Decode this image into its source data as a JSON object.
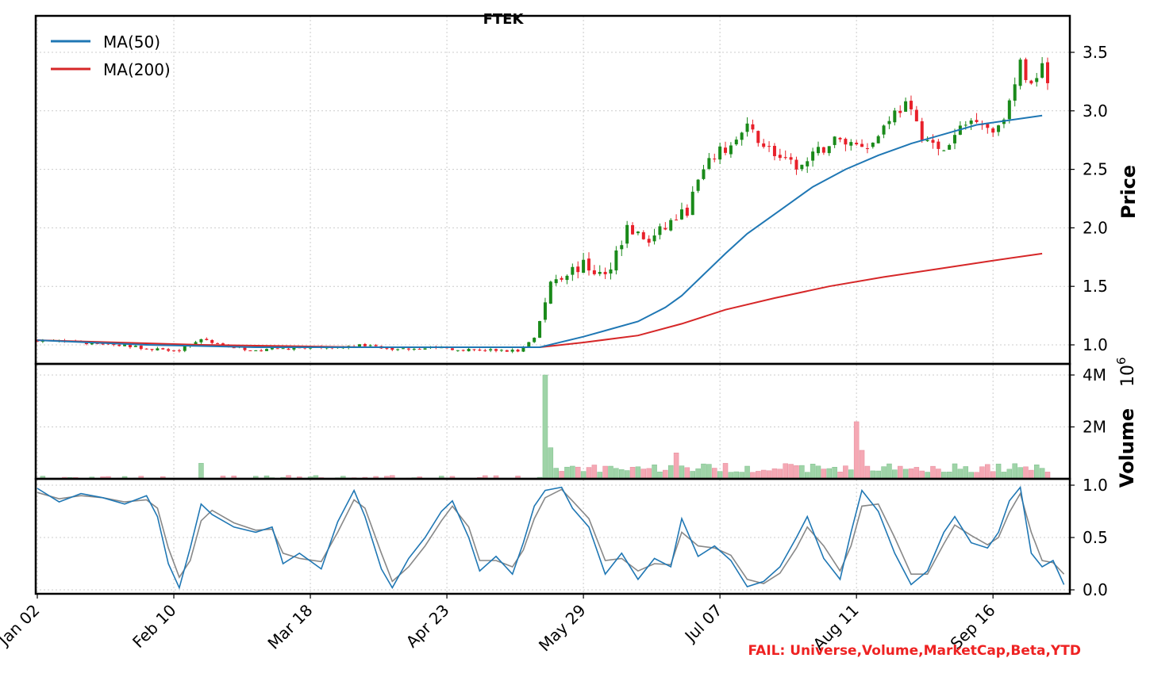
{
  "title": "FTEK",
  "fail_text": "FAIL: Universe,Volume,MarketCap,Beta,YTD",
  "colors": {
    "up": "#1a8a1a",
    "down": "#e8202a",
    "ma50": "#1f77b4",
    "ma200": "#d62728",
    "vol_up": "#9fd4a8",
    "vol_down": "#f5a8b4",
    "osc_fast": "#1f77b4",
    "osc_slow": "#888888",
    "grid": "#cccccc",
    "fail": "#ee2222"
  },
  "chart_data": [
    {
      "type": "candlestick",
      "panel": "price",
      "ylabel": "Price",
      "yticks": [
        "1.0",
        "1.5",
        "2.0",
        "2.5",
        "3.0",
        "3.5"
      ],
      "ylim": [
        0.83,
        3.67
      ],
      "xlim": [
        0,
        185
      ],
      "xticks": [
        {
          "label": "Jan 02",
          "i": 0
        },
        {
          "label": "Feb 10",
          "i": 25
        },
        {
          "label": "Mar 18",
          "i": 50
        },
        {
          "label": "Apr 23",
          "i": 75
        },
        {
          "label": "May 29",
          "i": 100
        },
        {
          "label": "Jul 07",
          "i": 125
        },
        {
          "label": "Aug 11",
          "i": 150
        },
        {
          "label": "Sep 16",
          "i": 175
        }
      ],
      "legend": [
        "MA(50)",
        "MA(200)"
      ],
      "legend_position": "upper-left",
      "anchors": [
        [
          0,
          1.04
        ],
        [
          8,
          1.02
        ],
        [
          15,
          1.0
        ],
        [
          22,
          0.96
        ],
        [
          26,
          0.96
        ],
        [
          30,
          1.05
        ],
        [
          34,
          1.0
        ],
        [
          40,
          0.95
        ],
        [
          45,
          0.97
        ],
        [
          55,
          0.97
        ],
        [
          60,
          1.0
        ],
        [
          65,
          0.96
        ],
        [
          72,
          0.98
        ],
        [
          78,
          0.96
        ],
        [
          88,
          0.95
        ],
        [
          91,
          1.05
        ],
        [
          93,
          1.35
        ],
        [
          94,
          1.55
        ],
        [
          97,
          1.62
        ],
        [
          100,
          1.68
        ],
        [
          104,
          1.58
        ],
        [
          106,
          1.8
        ],
        [
          108,
          2.0
        ],
        [
          112,
          1.88
        ],
        [
          116,
          2.05
        ],
        [
          119,
          2.15
        ],
        [
          121,
          2.4
        ],
        [
          124,
          2.62
        ],
        [
          127,
          2.7
        ],
        [
          130,
          2.85
        ],
        [
          133,
          2.72
        ],
        [
          137,
          2.55
        ],
        [
          140,
          2.52
        ],
        [
          143,
          2.65
        ],
        [
          146,
          2.75
        ],
        [
          150,
          2.72
        ],
        [
          153,
          2.72
        ],
        [
          156,
          2.95
        ],
        [
          159,
          3.05
        ],
        [
          162,
          2.8
        ],
        [
          165,
          2.65
        ],
        [
          167,
          2.7
        ],
        [
          169,
          2.85
        ],
        [
          172,
          2.95
        ],
        [
          175,
          2.82
        ],
        [
          178,
          3.05
        ],
        [
          180,
          3.4
        ],
        [
          182,
          3.2
        ],
        [
          184,
          3.45
        ],
        [
          186,
          3.05
        ]
      ],
      "ma50": [
        [
          0,
          1.04
        ],
        [
          20,
          1.0
        ],
        [
          40,
          0.98
        ],
        [
          70,
          0.98
        ],
        [
          92,
          0.98
        ],
        [
          100,
          1.07
        ],
        [
          110,
          1.2
        ],
        [
          115,
          1.32
        ],
        [
          118,
          1.42
        ],
        [
          122,
          1.6
        ],
        [
          126,
          1.78
        ],
        [
          130,
          1.95
        ],
        [
          136,
          2.15
        ],
        [
          142,
          2.35
        ],
        [
          148,
          2.5
        ],
        [
          154,
          2.62
        ],
        [
          160,
          2.72
        ],
        [
          166,
          2.8
        ],
        [
          172,
          2.88
        ],
        [
          178,
          2.92
        ],
        [
          184,
          2.96
        ]
      ],
      "ma200": [
        [
          0,
          1.04
        ],
        [
          30,
          1.0
        ],
        [
          60,
          0.98
        ],
        [
          92,
          0.98
        ],
        [
          100,
          1.02
        ],
        [
          110,
          1.08
        ],
        [
          118,
          1.18
        ],
        [
          126,
          1.3
        ],
        [
          135,
          1.4
        ],
        [
          145,
          1.5
        ],
        [
          155,
          1.58
        ],
        [
          165,
          1.65
        ],
        [
          175,
          1.72
        ],
        [
          184,
          1.78
        ]
      ],
      "volume_spikes": [
        [
          93,
          4.0
        ],
        [
          94,
          1.2
        ],
        [
          150,
          2.2
        ],
        [
          151,
          1.1
        ],
        [
          148,
          0.5
        ],
        [
          117,
          1.0
        ],
        [
          118,
          0.5
        ],
        [
          30,
          0.6
        ]
      ]
    },
    {
      "type": "bar",
      "panel": "volume",
      "ylabel": "Volume",
      "exponent_label": "10",
      "exponent_power": "6",
      "yticks": [
        "2M",
        "4M"
      ],
      "ylim": [
        0,
        4.1
      ]
    },
    {
      "type": "line",
      "panel": "oscillator",
      "yticks": [
        "0.0",
        "0.5",
        "1.0"
      ],
      "ylim": [
        -0.05,
        1.05
      ],
      "fast": [
        [
          0,
          0.97
        ],
        [
          4,
          0.84
        ],
        [
          8,
          0.92
        ],
        [
          12,
          0.88
        ],
        [
          16,
          0.82
        ],
        [
          20,
          0.9
        ],
        [
          22,
          0.7
        ],
        [
          24,
          0.25
        ],
        [
          26,
          0.02
        ],
        [
          28,
          0.4
        ],
        [
          30,
          0.82
        ],
        [
          32,
          0.72
        ],
        [
          36,
          0.6
        ],
        [
          40,
          0.55
        ],
        [
          43,
          0.6
        ],
        [
          45,
          0.25
        ],
        [
          48,
          0.35
        ],
        [
          52,
          0.2
        ],
        [
          55,
          0.65
        ],
        [
          58,
          0.95
        ],
        [
          60,
          0.7
        ],
        [
          63,
          0.2
        ],
        [
          65,
          0.02
        ],
        [
          68,
          0.3
        ],
        [
          71,
          0.5
        ],
        [
          74,
          0.75
        ],
        [
          76,
          0.85
        ],
        [
          79,
          0.5
        ],
        [
          81,
          0.18
        ],
        [
          84,
          0.32
        ],
        [
          87,
          0.15
        ],
        [
          89,
          0.45
        ],
        [
          91,
          0.8
        ],
        [
          93,
          0.95
        ],
        [
          96,
          0.98
        ],
        [
          98,
          0.78
        ],
        [
          101,
          0.6
        ],
        [
          104,
          0.15
        ],
        [
          107,
          0.35
        ],
        [
          110,
          0.1
        ],
        [
          113,
          0.3
        ],
        [
          116,
          0.22
        ],
        [
          118,
          0.68
        ],
        [
          121,
          0.32
        ],
        [
          124,
          0.42
        ],
        [
          127,
          0.28
        ],
        [
          130,
          0.03
        ],
        [
          133,
          0.08
        ],
        [
          136,
          0.22
        ],
        [
          139,
          0.5
        ],
        [
          141,
          0.7
        ],
        [
          144,
          0.3
        ],
        [
          147,
          0.1
        ],
        [
          149,
          0.55
        ],
        [
          151,
          0.95
        ],
        [
          154,
          0.75
        ],
        [
          157,
          0.35
        ],
        [
          160,
          0.05
        ],
        [
          163,
          0.18
        ],
        [
          166,
          0.55
        ],
        [
          168,
          0.7
        ],
        [
          171,
          0.45
        ],
        [
          174,
          0.4
        ],
        [
          176,
          0.55
        ],
        [
          178,
          0.85
        ],
        [
          180,
          0.98
        ],
        [
          182,
          0.35
        ],
        [
          184,
          0.22
        ],
        [
          186,
          0.28
        ],
        [
          188,
          0.05
        ]
      ],
      "slow": [
        [
          0,
          0.93
        ],
        [
          4,
          0.87
        ],
        [
          8,
          0.9
        ],
        [
          12,
          0.88
        ],
        [
          16,
          0.84
        ],
        [
          20,
          0.86
        ],
        [
          22,
          0.78
        ],
        [
          24,
          0.4
        ],
        [
          26,
          0.12
        ],
        [
          28,
          0.28
        ],
        [
          30,
          0.66
        ],
        [
          32,
          0.76
        ],
        [
          36,
          0.64
        ],
        [
          40,
          0.57
        ],
        [
          43,
          0.58
        ],
        [
          45,
          0.35
        ],
        [
          48,
          0.3
        ],
        [
          52,
          0.27
        ],
        [
          55,
          0.55
        ],
        [
          58,
          0.86
        ],
        [
          60,
          0.78
        ],
        [
          63,
          0.35
        ],
        [
          65,
          0.08
        ],
        [
          68,
          0.22
        ],
        [
          71,
          0.42
        ],
        [
          74,
          0.66
        ],
        [
          76,
          0.8
        ],
        [
          79,
          0.6
        ],
        [
          81,
          0.28
        ],
        [
          84,
          0.28
        ],
        [
          87,
          0.22
        ],
        [
          89,
          0.38
        ],
        [
          91,
          0.68
        ],
        [
          93,
          0.88
        ],
        [
          96,
          0.96
        ],
        [
          98,
          0.85
        ],
        [
          101,
          0.68
        ],
        [
          104,
          0.28
        ],
        [
          107,
          0.3
        ],
        [
          110,
          0.18
        ],
        [
          113,
          0.25
        ],
        [
          116,
          0.24
        ],
        [
          118,
          0.55
        ],
        [
          121,
          0.42
        ],
        [
          124,
          0.4
        ],
        [
          127,
          0.33
        ],
        [
          130,
          0.1
        ],
        [
          133,
          0.06
        ],
        [
          136,
          0.16
        ],
        [
          139,
          0.4
        ],
        [
          141,
          0.6
        ],
        [
          144,
          0.42
        ],
        [
          147,
          0.18
        ],
        [
          149,
          0.42
        ],
        [
          151,
          0.8
        ],
        [
          154,
          0.82
        ],
        [
          157,
          0.5
        ],
        [
          160,
          0.15
        ],
        [
          163,
          0.15
        ],
        [
          166,
          0.44
        ],
        [
          168,
          0.62
        ],
        [
          171,
          0.52
        ],
        [
          174,
          0.43
        ],
        [
          176,
          0.5
        ],
        [
          178,
          0.74
        ],
        [
          180,
          0.92
        ],
        [
          182,
          0.55
        ],
        [
          184,
          0.28
        ],
        [
          186,
          0.26
        ],
        [
          188,
          0.15
        ]
      ]
    }
  ]
}
